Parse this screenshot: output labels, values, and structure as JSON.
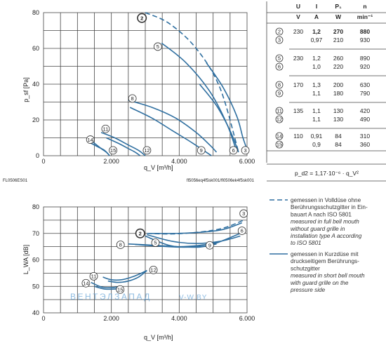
{
  "chart_data": [
    {
      "type": "line",
      "title": "",
      "xlabel": "q_V [m³/h]",
      "ylabel": "p_sf [Pa]",
      "xlim": [
        0,
        6000
      ],
      "ylim": [
        0,
        80
      ],
      "x_ticks": [
        "0",
        "2.000",
        "4.000",
        "6.000"
      ],
      "y_ticks": [
        "0",
        "20",
        "40",
        "60",
        "80"
      ],
      "grid": true,
      "footer_left": "FL0506ES01",
      "footer_right": "fl5056eq4f5sk001/fl0506ek4f5sk001",
      "series": [
        {
          "name": "2",
          "style": "dashed",
          "x": [
            3000,
            3700,
            4500,
            5200,
            5750
          ],
          "y": [
            80,
            74,
            60,
            38,
            2
          ]
        },
        {
          "name": "3",
          "style": "solid",
          "x": [
            4800,
            5300,
            5700,
            5880,
            6030
          ],
          "y": [
            52,
            38,
            22,
            10,
            2
          ]
        },
        {
          "name": "5",
          "style": "solid",
          "x": [
            3480,
            4200,
            4900,
            5400,
            5700
          ],
          "y": [
            63,
            52,
            36,
            18,
            2
          ]
        },
        {
          "name": "6",
          "style": "solid",
          "x": [
            4600,
            5100,
            5500,
            5750
          ],
          "y": [
            40,
            28,
            14,
            2
          ]
        },
        {
          "name": "8",
          "style": "solid",
          "x": [
            2500,
            3200,
            3900,
            4500,
            4900,
            5100
          ],
          "y": [
            31,
            27,
            21,
            13,
            6,
            2
          ]
        },
        {
          "name": "9",
          "style": "solid",
          "x": [
            2550,
            3200,
            3800,
            4400,
            4950
          ],
          "y": [
            27,
            21,
            14,
            7,
            0
          ]
        },
        {
          "name": "11",
          "style": "solid",
          "x": [
            1700,
            2100,
            2500,
            2800,
            3000
          ],
          "y": [
            13,
            10,
            6,
            3,
            0
          ]
        },
        {
          "name": "12",
          "style": "solid",
          "x": [
            1850,
            2200,
            2500,
            2700,
            2850
          ],
          "y": [
            10,
            7,
            4,
            2,
            0
          ]
        },
        {
          "name": "14",
          "style": "solid",
          "x": [
            1300,
            1500,
            1700,
            1850,
            1950
          ],
          "y": [
            10,
            7,
            4,
            2,
            0
          ]
        },
        {
          "name": "15",
          "style": "solid",
          "x": [
            1400,
            1600,
            1800,
            1950
          ],
          "y": [
            7,
            5,
            3,
            0
          ]
        }
      ],
      "markers": [
        {
          "label": "2",
          "x": 2900,
          "y": 77,
          "highlight": true
        },
        {
          "label": "5",
          "x": 3370,
          "y": 61
        },
        {
          "label": "8",
          "x": 2620,
          "y": 32
        },
        {
          "label": "11",
          "x": 1830,
          "y": 15
        },
        {
          "label": "14",
          "x": 1380,
          "y": 9
        },
        {
          "label": "15",
          "x": 2050,
          "y": 3
        },
        {
          "label": "12",
          "x": 3050,
          "y": 3
        },
        {
          "label": "9",
          "x": 4650,
          "y": 3
        },
        {
          "label": "6",
          "x": 5600,
          "y": 3
        },
        {
          "label": "3",
          "x": 5950,
          "y": 3
        }
      ]
    },
    {
      "type": "line",
      "title": "",
      "xlabel": "q_V [m³/h]",
      "ylabel": "L_WA [dB]",
      "xlim": [
        0,
        6000
      ],
      "ylim": [
        40,
        80
      ],
      "x_ticks": [
        "0",
        "2.000",
        "4.000",
        "6.000"
      ],
      "y_ticks": [
        "40",
        "50",
        "60",
        "70",
        "80"
      ],
      "grid": true,
      "series": [
        {
          "name": "2",
          "style": "dashed",
          "x": [
            3050,
            3800,
            4600,
            5300,
            5900
          ],
          "y": [
            70,
            69.8,
            70.5,
            72,
            75
          ]
        },
        {
          "name": "3",
          "style": "solid",
          "x": [
            3100,
            3900,
            4700,
            5300,
            5850
          ],
          "y": [
            70,
            70,
            70.5,
            71.5,
            74
          ]
        },
        {
          "name": "5",
          "style": "solid",
          "x": [
            3000,
            3700,
            4300,
            4900,
            5800
          ],
          "y": [
            69,
            65.5,
            64.8,
            65.5,
            70
          ]
        },
        {
          "name": "6",
          "style": "solid",
          "x": [
            3050,
            3800,
            4500,
            5200,
            5800
          ],
          "y": [
            69.5,
            67,
            66.2,
            67,
            69
          ]
        },
        {
          "name": "8",
          "style": "solid",
          "x": [
            2500,
            3300,
            4000,
            4600,
            5100
          ],
          "y": [
            66,
            65.5,
            65,
            65.5,
            66.5
          ]
        },
        {
          "name": "9",
          "style": "solid",
          "x": [
            2700,
            3400,
            4100,
            4800,
            5100
          ],
          "y": [
            65.8,
            65.2,
            64.8,
            65.3,
            66
          ]
        },
        {
          "name": "11",
          "style": "solid",
          "x": [
            1750,
            2000,
            2300,
            2600,
            2800,
            3050
          ],
          "y": [
            53.5,
            52.5,
            52.5,
            53.5,
            54.5,
            56
          ]
        },
        {
          "name": "12",
          "style": "solid",
          "x": [
            1900,
            2200,
            2500,
            2800,
            3050
          ],
          "y": [
            52,
            51.5,
            52,
            53.5,
            56
          ]
        },
        {
          "name": "14",
          "style": "solid",
          "x": [
            1400,
            1700,
            2000,
            2300
          ],
          "y": [
            51.5,
            49.8,
            49.5,
            50
          ]
        },
        {
          "name": "15",
          "style": "solid",
          "x": [
            1500,
            1800,
            2100,
            2300
          ],
          "y": [
            50,
            49,
            49,
            49.5
          ]
        }
      ],
      "markers": [
        {
          "label": "2",
          "x": 2850,
          "y": 70,
          "highlight": true
        },
        {
          "label": "3",
          "x": 5900,
          "y": 77.5
        },
        {
          "label": "6",
          "x": 5850,
          "y": 71
        },
        {
          "label": "5",
          "x": 3300,
          "y": 66.5
        },
        {
          "label": "9",
          "x": 4900,
          "y": 65.5
        },
        {
          "label": "8",
          "x": 2270,
          "y": 65.7
        },
        {
          "label": "12",
          "x": 3240,
          "y": 56.2
        },
        {
          "label": "11",
          "x": 1480,
          "y": 53.8
        },
        {
          "label": "14",
          "x": 1250,
          "y": 51.2
        },
        {
          "label": "15",
          "x": 2260,
          "y": 48.8
        }
      ]
    }
  ],
  "table": {
    "headers": [
      "U",
      "I",
      "P₁",
      "n"
    ],
    "units": [
      "V",
      "A",
      "W",
      "min⁻¹"
    ],
    "groups": [
      [
        {
          "id": "2",
          "U": "230",
          "I": "1,2",
          "P": "270",
          "n": "880",
          "bold": true
        },
        {
          "id": "3",
          "U": "",
          "I": "0,97",
          "P": "210",
          "n": "930",
          "bold": false
        }
      ],
      [
        {
          "id": "5",
          "U": "230",
          "I": "1,2",
          "P": "260",
          "n": "890",
          "bold": false
        },
        {
          "id": "6",
          "U": "",
          "I": "1,0",
          "P": "220",
          "n": "920",
          "bold": false
        }
      ],
      [
        {
          "id": "8",
          "U": "170",
          "I": "1,3",
          "P": "200",
          "n": "630",
          "bold": false
        },
        {
          "id": "9",
          "U": "",
          "I": "1,1",
          "P": "180",
          "n": "790",
          "bold": false
        }
      ],
      [
        {
          "id": "11",
          "U": "135",
          "I": "1,1",
          "P": "130",
          "n": "420",
          "bold": false
        },
        {
          "id": "12",
          "U": "",
          "I": "1,1",
          "P": "130",
          "n": "490",
          "bold": false
        }
      ],
      [
        {
          "id": "14",
          "U": "110",
          "I": "0,91",
          "P": "84",
          "n": "310",
          "bold": false
        },
        {
          "id": "15",
          "U": "",
          "I": "0,9",
          "P": "84",
          "n": "360",
          "bold": false
        }
      ]
    ],
    "formula": "p_d2 = 1,17·10⁻⁶ · q_V²"
  },
  "legend": {
    "dashed_de": [
      "gemessen in Volldüse ohne",
      "Berührungsschutzgitter in Ein-",
      "bauart A nach ISO 5801"
    ],
    "dashed_en": [
      "measured in full bell mouth",
      "without guard grille in",
      "installation type A according",
      "to ISO 5801"
    ],
    "solid_de": [
      "gemessen in Kurzdüse mit",
      "druckseitigem Berührungs-",
      "schutzgitter"
    ],
    "solid_en": [
      "measured in short bell mouth",
      "with guard grille on the",
      "pressure side"
    ]
  },
  "watermark": {
    "text": "ВЕНТЭЛЗАПАД",
    "suffix": "V-W.BY"
  },
  "colors": {
    "curve": "#2f6fa0",
    "grid": "#444444",
    "watermark": "#6aa6d8"
  }
}
